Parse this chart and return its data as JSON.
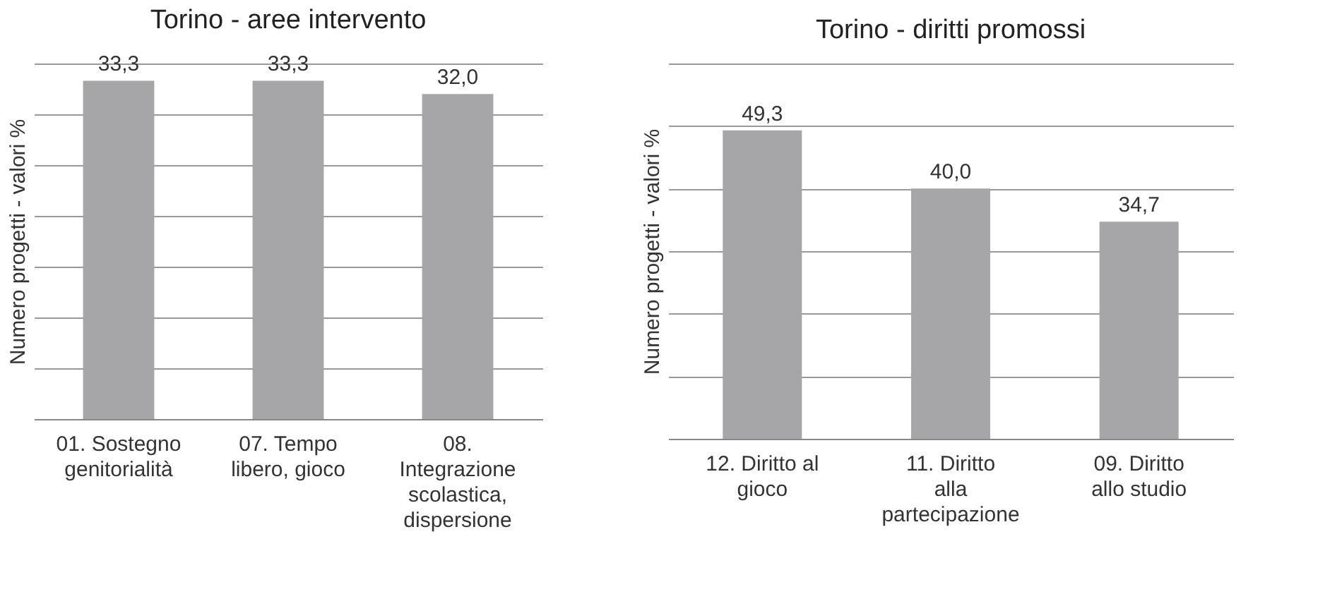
{
  "chart_data": [
    {
      "type": "bar",
      "title": "Torino - aree intervento",
      "ylabel": "Numero progetti - valori %",
      "categories": [
        "01. Sostegno genitorialità",
        "07. Tempo libero, gioco",
        "08. Integrazione scolastica, dispersione"
      ],
      "values": [
        33.3,
        33.3,
        32.0
      ],
      "color": "#a6a6a8",
      "value_labels": [
        "33,3",
        "33,3",
        "32,0"
      ],
      "ylim": [
        0,
        35
      ],
      "yticks": [
        {
          "value": 0,
          "label": null
        },
        {
          "value": 5,
          "label": null
        },
        {
          "value": 10,
          "label": null
        },
        {
          "value": 15,
          "label": null
        },
        {
          "value": 20,
          "label": null
        },
        {
          "value": 25,
          "label": null
        },
        {
          "value": 30,
          "label": null
        },
        {
          "value": 35,
          "label": null
        }
      ],
      "tick_labels": "x",
      "grid": "y"
    },
    {
      "type": "bar",
      "title": "Torino - diritti promossi",
      "ylabel": "Numero progetti - valori %",
      "categories": [
        "12. Diritto al gioco",
        "11. Diritto alla partecipazione",
        "09. Diritto allo studio"
      ],
      "values": [
        49.3,
        40.0,
        34.7
      ],
      "color": "#a6a6a8",
      "value_labels": [
        "49,3",
        "40,0",
        "34,7"
      ],
      "ylim": [
        0,
        60
      ],
      "yticks": [
        {
          "value": 0,
          "label": null
        },
        {
          "value": 10,
          "label": null
        },
        {
          "value": 20,
          "label": null
        },
        {
          "value": 30,
          "label": null
        },
        {
          "value": 40,
          "label": null
        },
        {
          "value": 50,
          "label": null
        },
        {
          "value": 60,
          "label": null
        }
      ],
      "tick_labels": "x",
      "grid": "y"
    }
  ]
}
